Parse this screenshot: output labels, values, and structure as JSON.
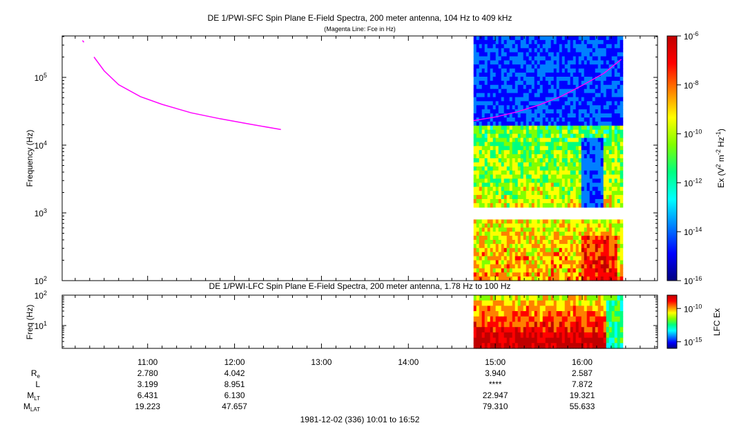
{
  "colors": {
    "fce_line": "#ff00ff",
    "background": "#ffffff",
    "colorscale": [
      "#00007f",
      "#0000ff",
      "#0080ff",
      "#00ffff",
      "#00ff80",
      "#80ff00",
      "#ffff00",
      "#ff8000",
      "#ff0000",
      "#c00000"
    ]
  },
  "chart_data": [
    {
      "type": "heatmap",
      "title": "DE 1/PWI-SFC  Spin Plane E-Field Spectra, 200 meter antenna, 104 Hz to 409 kHz",
      "subtitle": "(Magenta Line: Fce in Hz)",
      "ylabel": "Frequency (Hz)",
      "yscale": "log",
      "ylim": [
        100,
        409000
      ],
      "y_ticks": [
        {
          "value": 100,
          "base": "10",
          "exp": "2"
        },
        {
          "value": 1000,
          "base": "10",
          "exp": "3"
        },
        {
          "value": 10000,
          "base": "10",
          "exp": "4"
        },
        {
          "value": 100000,
          "base": "10",
          "exp": "5"
        }
      ],
      "colorbar": {
        "label_parts": [
          "Ex (V",
          "2",
          " m",
          "-2",
          " Hz",
          "-1",
          ")"
        ],
        "scale": "log",
        "range": [
          1e-16,
          1e-06
        ],
        "ticks": [
          {
            "value": 1e-06,
            "base": "10",
            "exp": "-6"
          },
          {
            "value": 1e-08,
            "base": "10",
            "exp": "-8"
          },
          {
            "value": 1e-10,
            "base": "10",
            "exp": "-10"
          },
          {
            "value": 1e-12,
            "base": "10",
            "exp": "-12"
          },
          {
            "value": 1e-14,
            "base": "10",
            "exp": "-14"
          },
          {
            "value": 1e-16,
            "base": "10",
            "exp": "-16"
          }
        ]
      },
      "data_interval": {
        "start": "14:45",
        "end": "16:28"
      },
      "fce_series": [
        {
          "segment": 1,
          "points": [
            [
              "10:15",
              350000
            ],
            [
              "10:16",
              330000
            ]
          ]
        },
        {
          "segment": 2,
          "points": [
            [
              "10:23",
              200000
            ],
            [
              "10:30",
              125000
            ],
            [
              "10:40",
              78000
            ],
            [
              "10:55",
              52000
            ],
            [
              "11:10",
              40000
            ],
            [
              "11:30",
              30000
            ],
            [
              "11:50",
              24500
            ],
            [
              "12:10",
              20500
            ],
            [
              "12:32",
              17000
            ]
          ]
        },
        {
          "segment": 3,
          "points": [
            [
              "14:45",
              23000
            ],
            [
              "15:00",
              26000
            ],
            [
              "15:15",
              31000
            ],
            [
              "15:30",
              39000
            ],
            [
              "15:45",
              52000
            ],
            [
              "16:00",
              76000
            ],
            [
              "16:15",
              115000
            ],
            [
              "16:27",
              185000
            ]
          ]
        }
      ]
    },
    {
      "type": "heatmap",
      "title": "DE 1/PWI-LFC  Spin Plane E-Field Spectra, 200 meter antenna, 1.78 Hz to 100 Hz",
      "ylabel": "Freq (Hz)",
      "yscale": "log",
      "ylim": [
        1.78,
        100
      ],
      "y_ticks": [
        {
          "value": 10,
          "base": "10",
          "exp": "1"
        },
        {
          "value": 100,
          "base": "10",
          "exp": "2"
        }
      ],
      "colorbar": {
        "label": "LFC Ex",
        "scale": "log",
        "range": [
          1e-16,
          1e-08
        ],
        "ticks": [
          {
            "value": 1e-10,
            "base": "10",
            "exp": "-10"
          },
          {
            "value": 1e-15,
            "base": "10",
            "exp": "-15"
          }
        ]
      },
      "data_interval": {
        "start": "14:45",
        "end": "16:28"
      }
    }
  ],
  "time_axis": {
    "start": "10:01",
    "end": "16:52",
    "tick_labels": [
      "11:00",
      "12:00",
      "13:00",
      "14:00",
      "15:00",
      "16:00"
    ]
  },
  "ephemeris": {
    "rows": [
      {
        "name": "R",
        "sub": "e",
        "values": [
          "2.780",
          "4.042",
          "",
          "",
          "3.940",
          "2.587"
        ]
      },
      {
        "name": "L",
        "sub": "",
        "values": [
          "3.199",
          "8.951",
          "",
          "",
          "****",
          "7.872"
        ]
      },
      {
        "name": "M",
        "sub": "LT",
        "values": [
          "6.431",
          "6.130",
          "",
          "",
          "22.947",
          "19.321"
        ]
      },
      {
        "name": "M",
        "sub": "LAT",
        "values": [
          "19.223",
          "47.657",
          "",
          "",
          "79.310",
          "55.633"
        ]
      }
    ]
  },
  "footer": "1981-12-02 (336) 10:01 to 16:52"
}
